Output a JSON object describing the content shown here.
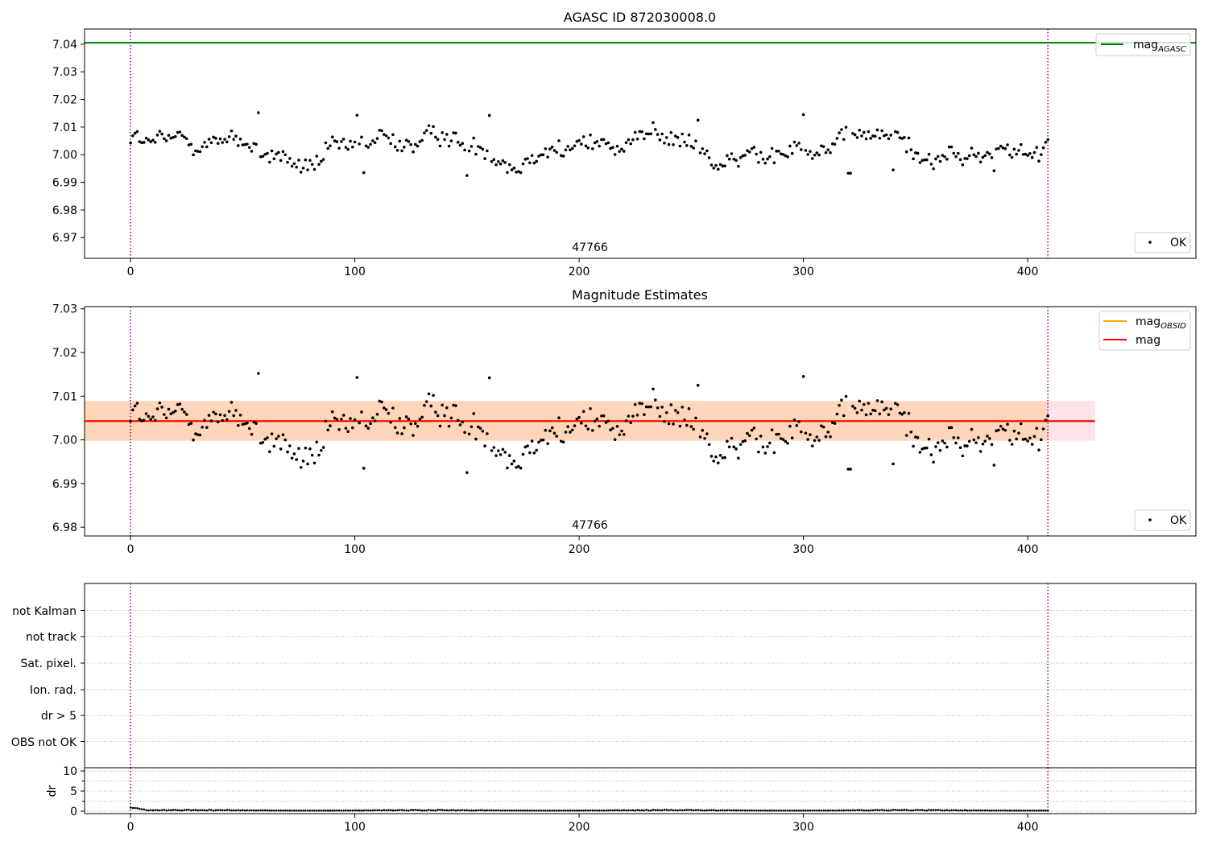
{
  "chart_data": [
    {
      "type": "scatter",
      "title": "AGASC ID 872030008.0",
      "xlim": [
        -20.5,
        475
      ],
      "ylim": [
        6.9625,
        7.0455
      ],
      "xticks": [
        0,
        100,
        200,
        300,
        400
      ],
      "yticks": [
        6.97,
        6.98,
        6.99,
        7.0,
        7.01,
        7.02,
        7.03,
        7.04
      ],
      "ytick_labels": [
        "6.97",
        "6.98",
        "6.99",
        "7.00",
        "7.01",
        "7.02",
        "7.03",
        "7.04"
      ],
      "vlines": [
        0,
        409
      ],
      "vline_color": "#800080",
      "hlines": [
        {
          "name": "mag_AGASC",
          "y": 7.0405,
          "color": "#008000"
        }
      ],
      "annotation": {
        "text": "47766",
        "x": 204.5
      },
      "legend_lines": {
        "position": "top-right",
        "entries": [
          {
            "label": "mag",
            "sub": "AGASC",
            "color": "#008000"
          }
        ]
      },
      "legend_points": {
        "position": "bottom-right",
        "entries": [
          {
            "label": "OK",
            "color": "#000000"
          }
        ]
      },
      "series": [
        {
          "name": "OK",
          "source": "mag_estimates"
        }
      ]
    },
    {
      "type": "scatter",
      "title": "Magnitude Estimates",
      "xlim": [
        -20.5,
        475
      ],
      "ylim": [
        6.978,
        7.0305
      ],
      "xticks": [
        0,
        100,
        200,
        300,
        400
      ],
      "yticks": [
        6.98,
        6.99,
        7.0,
        7.01,
        7.02,
        7.03
      ],
      "ytick_labels": [
        "6.98",
        "6.99",
        "7.00",
        "7.01",
        "7.02",
        "7.03"
      ],
      "vlines": [
        0,
        409
      ],
      "vline_color": "#800080",
      "hlines": [
        {
          "name": "mag_OBSID",
          "y": 7.0043,
          "color": "#ffa500",
          "x_range": [
            -20.5,
            430
          ]
        },
        {
          "name": "mag",
          "y": 7.0043,
          "color": "#ff0000",
          "x_range": [
            -20.5,
            430
          ]
        }
      ],
      "bands": [
        {
          "y_range": [
            6.9998,
            7.0089
          ],
          "x_range": [
            -20.5,
            430
          ],
          "color": "#ffc0cb",
          "opacity": 0.45
        },
        {
          "y_range": [
            6.9998,
            7.0089
          ],
          "x_range": [
            -20.5,
            409
          ],
          "color": "#ffa500",
          "opacity": 0.2
        }
      ],
      "annotation": {
        "text": "47766",
        "x": 204.5
      },
      "legend_lines": {
        "position": "top-right",
        "entries": [
          {
            "label": "mag",
            "sub": "OBSID",
            "color": "#ffa500"
          },
          {
            "label": "mag",
            "sub": "",
            "color": "#ff0000"
          }
        ]
      },
      "legend_points": {
        "position": "bottom-right",
        "entries": [
          {
            "label": "OK",
            "color": "#000000"
          }
        ]
      },
      "series": [
        {
          "name": "OK",
          "source": "mag_estimates"
        }
      ]
    },
    {
      "type": "scatter",
      "xlim": [
        -20.5,
        475
      ],
      "categories": [
        "not Kalman",
        "not track",
        "Sat. pixel.",
        "Ion. rad.",
        "dr > 5",
        "OBS not OK"
      ],
      "vlines": [
        0,
        409
      ],
      "vline_color": "#800080",
      "flags": []
    },
    {
      "type": "scatter",
      "ylabel": "dr",
      "xlim": [
        -20.5,
        475
      ],
      "ylim": [
        -0.6,
        10.8
      ],
      "xticks": [
        0,
        100,
        200,
        300,
        400
      ],
      "yticks": [
        0,
        5,
        10
      ],
      "vlines": [
        0,
        409
      ],
      "vline_color": "#800080",
      "series": [
        {
          "name": "dr",
          "start": [
            0.9,
            0.8,
            0.8,
            0.75,
            0.6,
            0.5,
            0.45
          ],
          "baseline": [
            0.15,
            0.35
          ]
        }
      ]
    }
  ],
  "mag_estimates": {
    "n_points": 410,
    "base": 7.0025,
    "components": [
      {
        "amp": 0.004,
        "period": 100,
        "phase": 0.0
      },
      {
        "amp": 0.002,
        "period": 47,
        "phase": 1.0
      },
      {
        "amp": 0.0015,
        "period": 23,
        "phase": 2.0
      },
      {
        "amp": 0.0008,
        "period": 11,
        "phase": 0.5
      }
    ],
    "noise": 0.0022,
    "outliers": [
      {
        "x": 104,
        "y": 6.9935
      },
      {
        "x": 150,
        "y": 6.9925
      },
      {
        "x": 160,
        "y": 7.0142
      },
      {
        "x": 320,
        "y": 6.9933
      },
      {
        "x": 321,
        "y": 6.9933
      },
      {
        "x": 340,
        "y": 6.9945
      },
      {
        "x": 300,
        "y": 7.0145
      },
      {
        "x": 57,
        "y": 7.0152
      },
      {
        "x": 101,
        "y": 7.0143
      },
      {
        "x": 385,
        "y": 6.9942
      },
      {
        "x": 253,
        "y": 7.0125
      }
    ]
  },
  "text": {
    "title_top": "AGASC ID 872030008.0",
    "title_mid": "Magnitude Estimates",
    "obsid_top": "47766",
    "obsid_mid": "47766",
    "legend_mag": "mag",
    "legend_agasc_sub": "AGASC",
    "legend_obsid_sub": "OBSID",
    "legend_ok": "OK",
    "flag_1": "not Kalman",
    "flag_2": "not track",
    "flag_3": "Sat. pixel.",
    "flag_4": "Ion. rad.",
    "flag_5": "dr > 5",
    "flag_6": "OBS not OK",
    "dr_label": "dr"
  }
}
